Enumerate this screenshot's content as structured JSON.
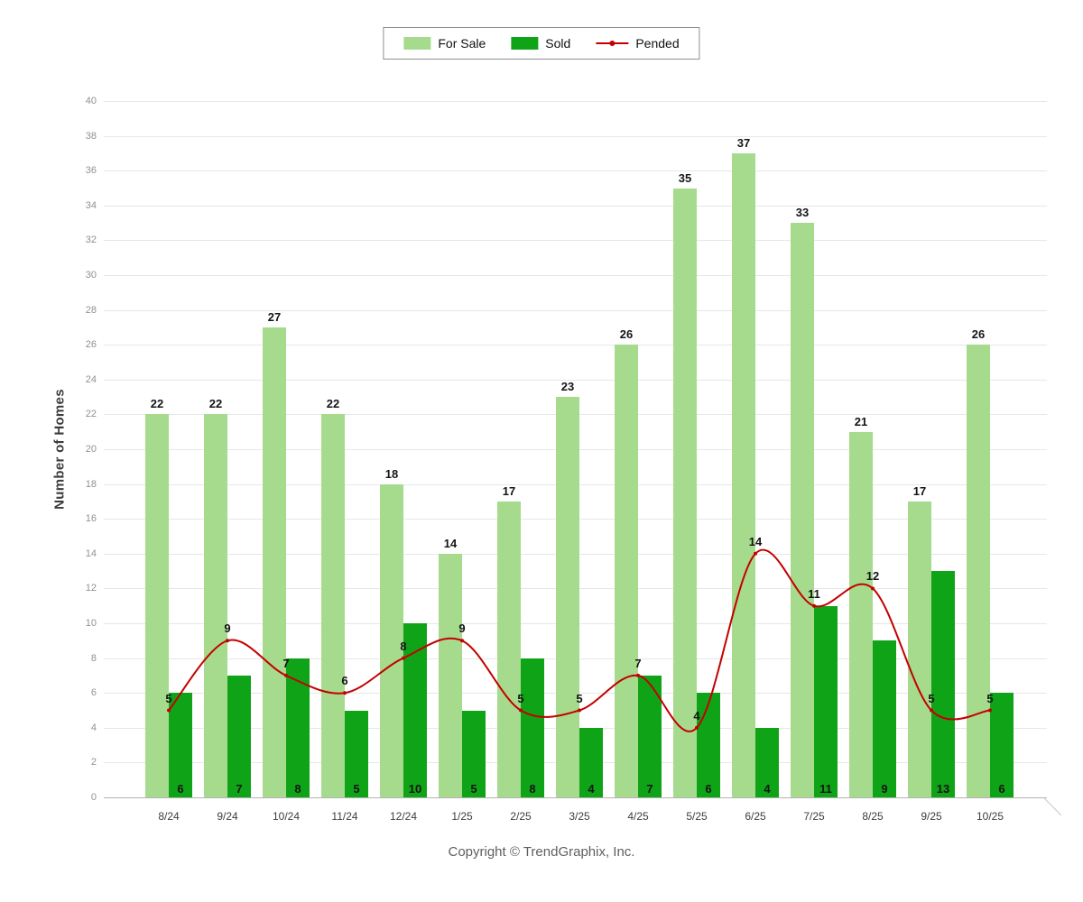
{
  "legend": {
    "items": [
      {
        "label": "For Sale",
        "color": "#a6db8d",
        "swatch": "box"
      },
      {
        "label": "Sold",
        "color": "#0fa417",
        "swatch": "box"
      },
      {
        "label": "Pended",
        "color": "#c40000",
        "swatch": "line"
      }
    ]
  },
  "y_axis": {
    "title": "Number of Homes",
    "min": 0,
    "max": 40,
    "step": 2
  },
  "footer": {
    "copyright": "Copyright © TrendGraphix, Inc."
  },
  "chart_data": {
    "type": "bar",
    "title": "",
    "xlabel": "",
    "ylabel": "Number of Homes",
    "ylim": [
      0,
      40
    ],
    "y_ticks": [
      0,
      2,
      4,
      6,
      8,
      10,
      12,
      14,
      16,
      18,
      20,
      22,
      24,
      26,
      28,
      30,
      32,
      34,
      36,
      38,
      40
    ],
    "grid": true,
    "legend_position": "top",
    "categories": [
      "8/24",
      "9/24",
      "10/24",
      "11/24",
      "12/24",
      "1/25",
      "2/25",
      "3/25",
      "4/25",
      "5/25",
      "6/25",
      "7/25",
      "8/25",
      "9/25",
      "10/25"
    ],
    "series": [
      {
        "name": "For Sale",
        "render": "bar",
        "color": "#a6db8d",
        "values": [
          22,
          22,
          27,
          22,
          18,
          14,
          17,
          23,
          26,
          35,
          37,
          33,
          21,
          17,
          26
        ]
      },
      {
        "name": "Sold",
        "render": "bar",
        "color": "#0fa417",
        "values": [
          6,
          7,
          8,
          5,
          10,
          5,
          8,
          4,
          7,
          6,
          4,
          11,
          9,
          13,
          6
        ]
      },
      {
        "name": "Pended",
        "render": "line",
        "color": "#c40000",
        "values": [
          5,
          9,
          7,
          6,
          8,
          9,
          5,
          5,
          7,
          4,
          14,
          11,
          12,
          5,
          5
        ]
      }
    ]
  }
}
